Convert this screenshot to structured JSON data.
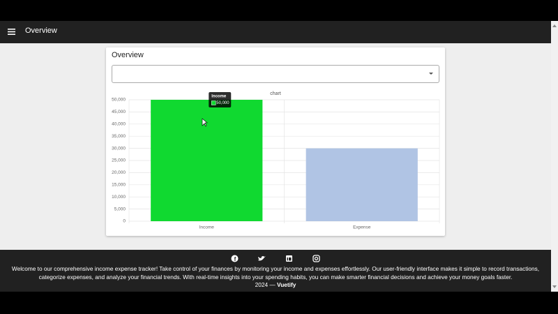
{
  "app_bar": {
    "title": "Overview"
  },
  "card": {
    "title": "Overview"
  },
  "chart_data": {
    "type": "bar",
    "title": "chart",
    "categories": [
      "Income",
      "Expense"
    ],
    "values": [
      50000,
      30000
    ],
    "colors": [
      "#10d930",
      "#b0c4e4"
    ],
    "ylim": [
      0,
      50000
    ],
    "yticks": [
      0,
      {
        "value": 5000,
        "label": "5,000"
      },
      {
        "value": 10000,
        "label": "10,000"
      },
      {
        "value": 15000,
        "label": "15,000"
      },
      {
        "value": 20000,
        "label": "20,000"
      },
      {
        "value": 25000,
        "label": "25,000"
      },
      {
        "value": 30000,
        "label": "30,000"
      },
      {
        "value": 35000,
        "label": "35,000"
      },
      {
        "value": 40000,
        "label": "40,000"
      },
      {
        "value": 45000,
        "label": "45,000"
      },
      {
        "value": 50000,
        "label": "50,000"
      }
    ],
    "grid": true,
    "tooltip": {
      "title": "Income",
      "value": "50,000"
    }
  },
  "footer": {
    "text": "Welcome to our comprehensive income expense tracker! Take control of your finances by monitoring your income and expenses effortlessly. Our user-friendly interface makes it simple to record transactions, categorize expenses, and analyze your financial trends. With real-time insights into your spending habits, you can make smarter financial decisions and achieve your money goals faster.",
    "copyright": "2024 —",
    "brand": "Vuetify"
  }
}
